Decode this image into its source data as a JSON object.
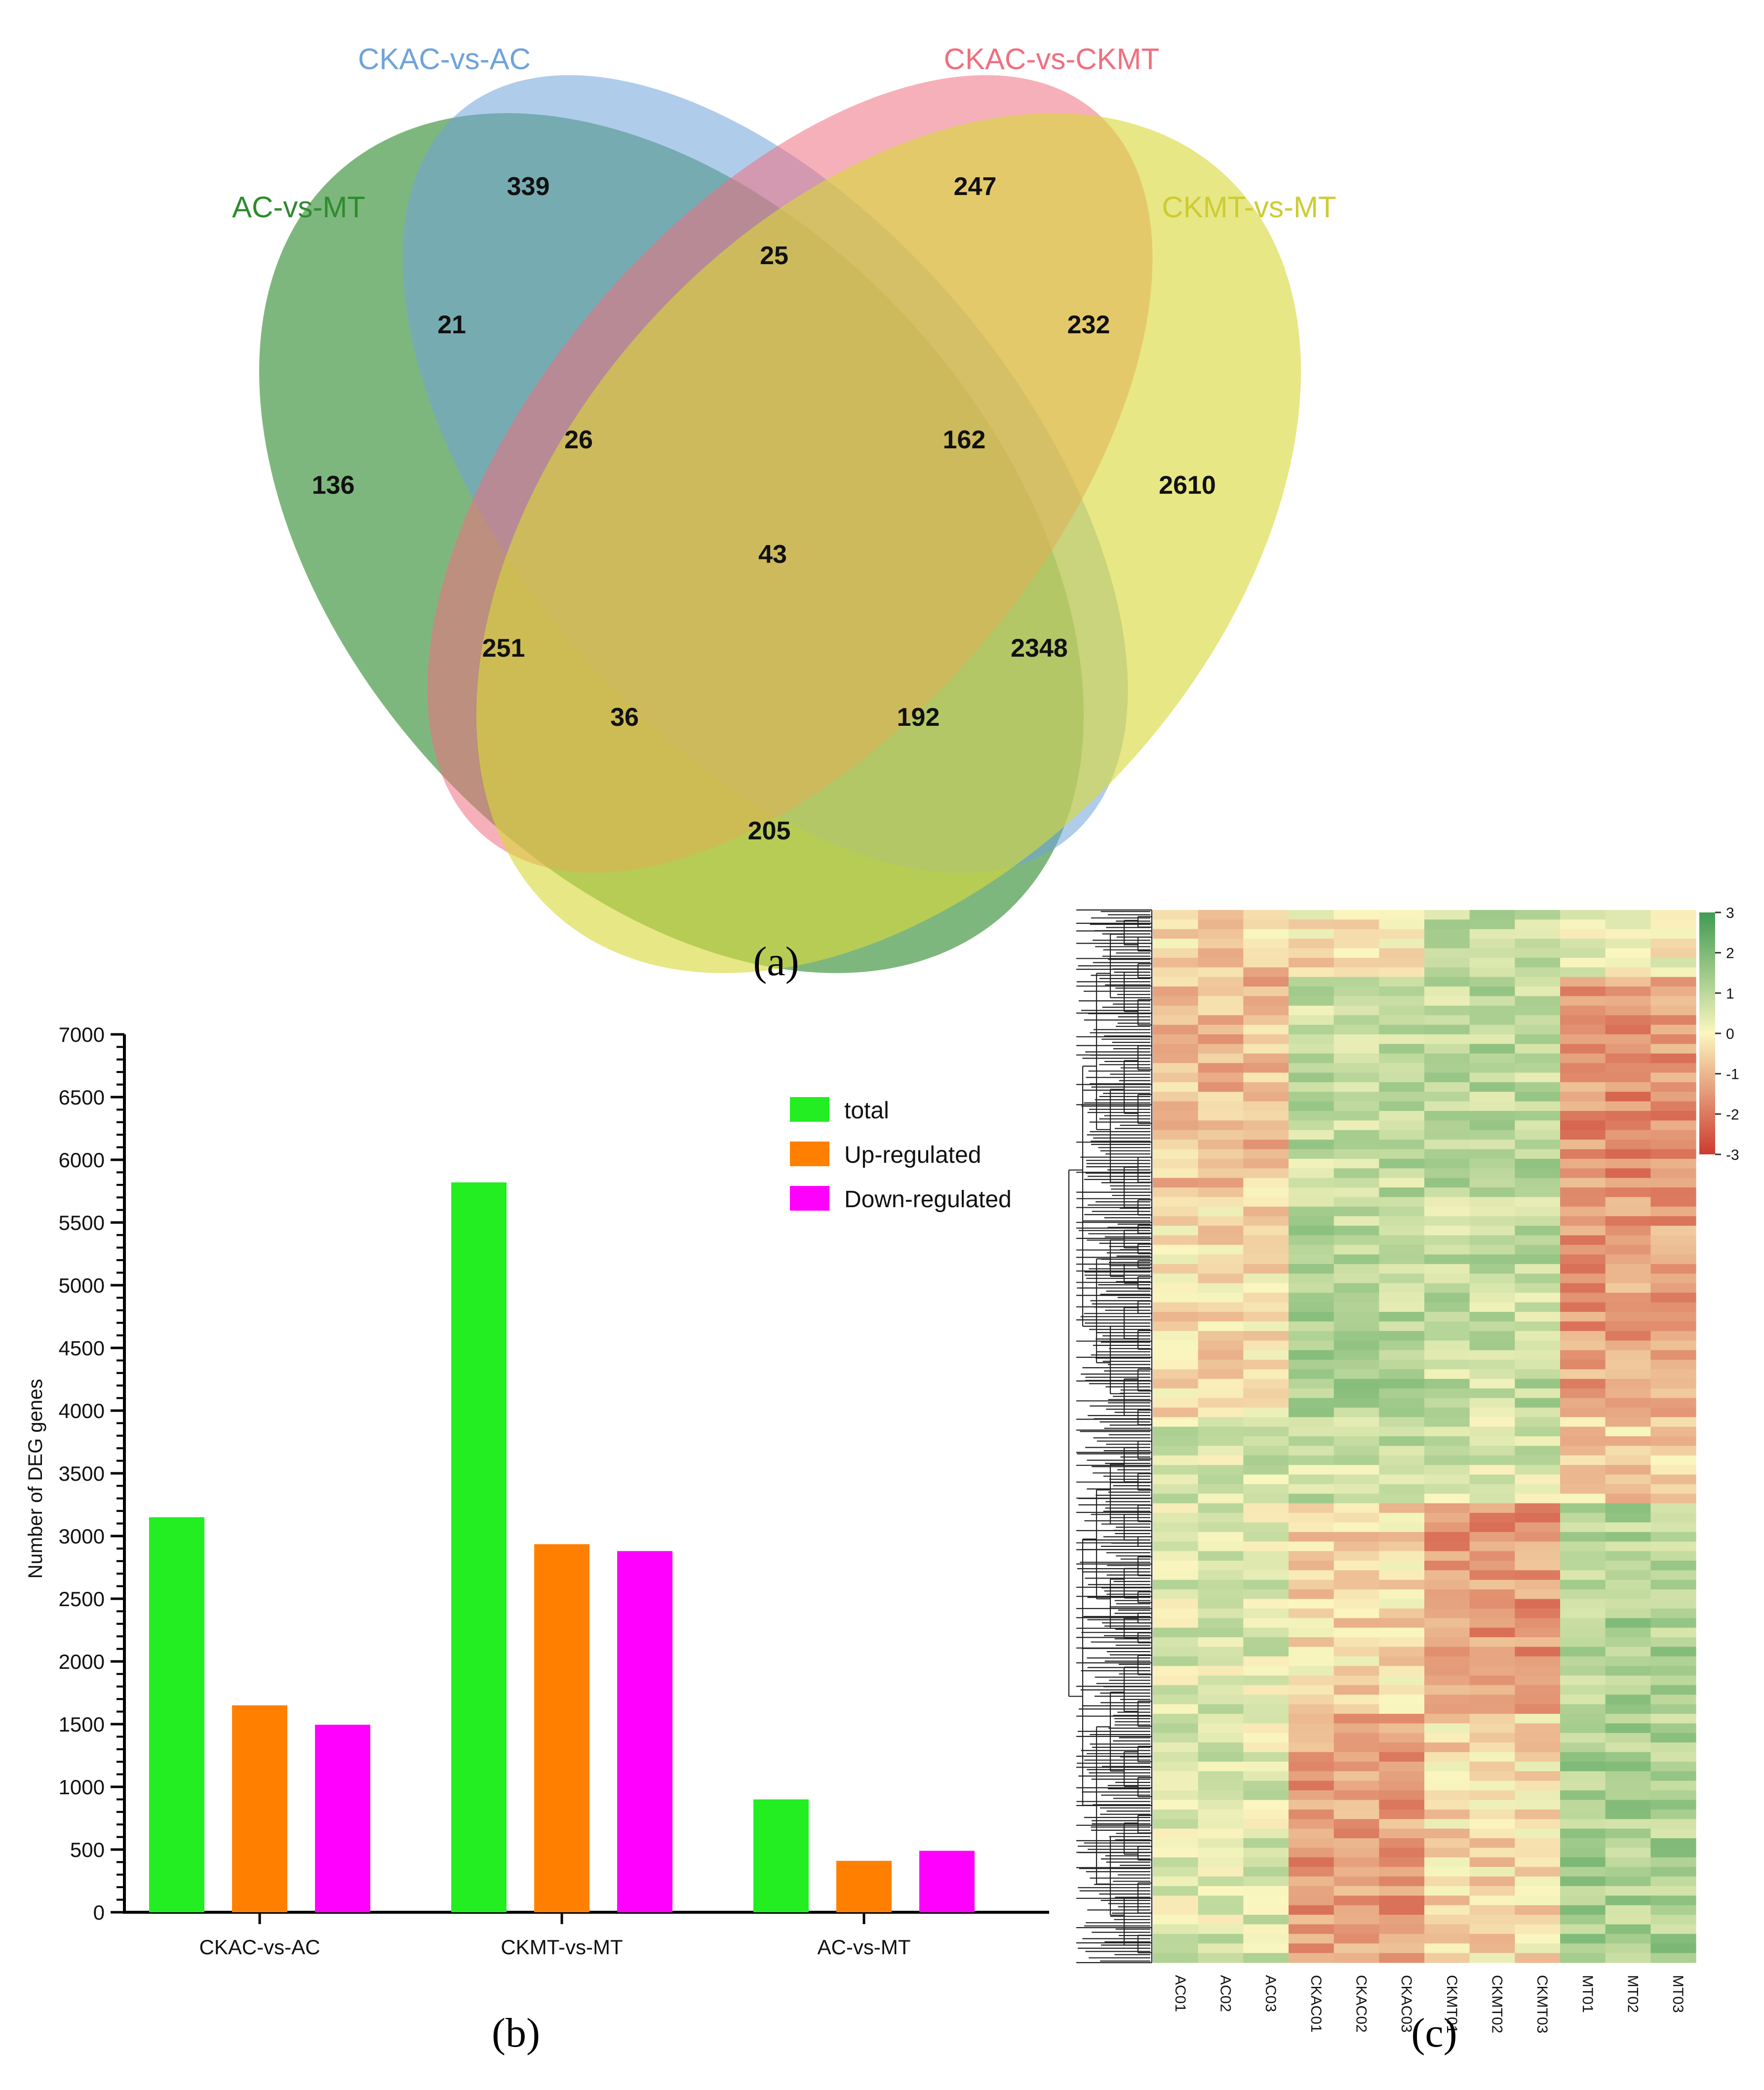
{
  "chart_data": [
    {
      "type": "venn",
      "panel_label": "(a)",
      "sets": [
        {
          "name": "CKAC-vs-AC",
          "color": "#6fa3db"
        },
        {
          "name": "CKAC-vs-CKMT",
          "color": "#ef6f80"
        },
        {
          "name": "AC-vs-MT",
          "color": "#2e8b2e"
        },
        {
          "name": "CKMT-vs-MT",
          "color": "#d8d83a"
        }
      ],
      "regions": [
        {
          "sets": [
            "CKAC-vs-AC"
          ],
          "value": "339"
        },
        {
          "sets": [
            "CKAC-vs-CKMT"
          ],
          "value": "247"
        },
        {
          "sets": [
            "CKAC-vs-AC",
            "CKAC-vs-CKMT"
          ],
          "value": "25"
        },
        {
          "sets": [
            "AC-vs-MT",
            "CKAC-vs-AC"
          ],
          "value": "21"
        },
        {
          "sets": [
            "CKAC-vs-CKMT",
            "CKMT-vs-MT"
          ],
          "value": "232"
        },
        {
          "sets": [
            "AC-vs-MT",
            "CKAC-vs-AC",
            "CKAC-vs-CKMT"
          ],
          "value": "26"
        },
        {
          "sets": [
            "CKAC-vs-AC",
            "CKAC-vs-CKMT",
            "CKMT-vs-MT"
          ],
          "value": "162"
        },
        {
          "sets": [
            "AC-vs-MT"
          ],
          "value": "136"
        },
        {
          "sets": [
            "CKMT-vs-MT"
          ],
          "value": "2610"
        },
        {
          "sets": [
            "AC-vs-MT",
            "CKAC-vs-AC",
            "CKAC-vs-CKMT",
            "CKMT-vs-MT"
          ],
          "value": "43"
        },
        {
          "sets": [
            "AC-vs-MT",
            "CKAC-vs-CKMT"
          ],
          "value": "251"
        },
        {
          "sets": [
            "CKAC-vs-AC",
            "CKMT-vs-MT"
          ],
          "value": "2348"
        },
        {
          "sets": [
            "AC-vs-MT",
            "CKAC-vs-CKMT",
            "CKMT-vs-MT"
          ],
          "value": "36"
        },
        {
          "sets": [
            "AC-vs-MT",
            "CKAC-vs-AC",
            "CKMT-vs-MT"
          ],
          "value": "192"
        },
        {
          "sets": [
            "AC-vs-MT",
            "CKMT-vs-MT"
          ],
          "value": "205"
        }
      ]
    },
    {
      "type": "bar",
      "panel_label": "(b)",
      "ylabel": "Number of DEG genes",
      "xlabel": "",
      "ylim": [
        0,
        7000
      ],
      "yticks": [
        "0",
        "500",
        "1000",
        "1500",
        "2000",
        "2500",
        "3000",
        "3500",
        "4000",
        "4500",
        "5000",
        "5500",
        "6000",
        "6500",
        "7000"
      ],
      "categories": [
        "CKAC-vs-AC",
        "CKMT-vs-MT",
        "AC-vs-MT"
      ],
      "series": [
        {
          "name": "total",
          "color": "#22ee22",
          "values": [
            3150,
            5820,
            900
          ]
        },
        {
          "name": "Up-regulated",
          "color": "#ff8000",
          "values": [
            1650,
            2935,
            410
          ]
        },
        {
          "name": "Down-regulated",
          "color": "#ff00ff",
          "values": [
            1495,
            2880,
            490
          ]
        }
      ],
      "legend": "top-right",
      "grid": false
    },
    {
      "type": "heatmap",
      "panel_label": "(c)",
      "columns": [
        "AC01",
        "AC02",
        "AC03",
        "CKAC01",
        "CKAC02",
        "CKAC03",
        "CKMT01",
        "CKMT02",
        "CKMT03",
        "MT01",
        "MT02",
        "MT03"
      ],
      "colorbar_ticks": [
        "3",
        "2",
        "1",
        "0",
        "-1",
        "-2",
        "-3"
      ],
      "color_range": [
        -3,
        3
      ],
      "colors": {
        "low": "#cc3b2e",
        "mid": "#fbf6c0",
        "high": "#3f9b52"
      }
    }
  ]
}
